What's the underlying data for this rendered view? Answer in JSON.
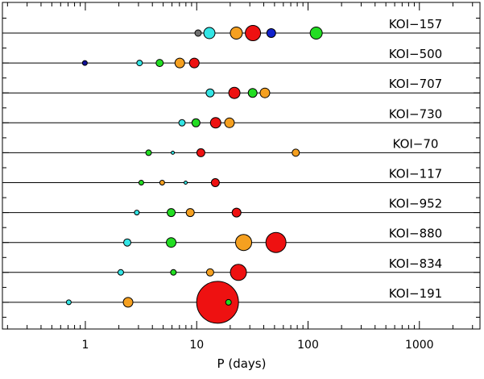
{
  "chart_data": {
    "type": "scatter",
    "title": "",
    "xlabel": "P (days)",
    "ylabel": "",
    "x_scale": "log",
    "xlim": [
      0.18,
      3500
    ],
    "x_ticks": [
      1,
      10,
      100,
      1000
    ],
    "x_tick_labels": [
      "1",
      "10",
      "100",
      "1000"
    ],
    "colors": {
      "cyan": "#33e5e5",
      "green": "#22dd22",
      "orange": "#f5a020",
      "red": "#ee1111",
      "blue": "#1122cc",
      "darkblue": "#101099",
      "gray": "#707070"
    },
    "systems": [
      {
        "name": "KOI−157",
        "planets": [
          {
            "period": 10.3,
            "size": 4,
            "color": "gray"
          },
          {
            "period": 13.0,
            "size": 7,
            "color": "cyan"
          },
          {
            "period": 22.7,
            "size": 7.5,
            "color": "orange"
          },
          {
            "period": 32.0,
            "size": 9.5,
            "color": "red"
          },
          {
            "period": 46.7,
            "size": 5.5,
            "color": "blue"
          },
          {
            "period": 118.4,
            "size": 7.5,
            "color": "green"
          }
        ]
      },
      {
        "name": "KOI−500",
        "planets": [
          {
            "period": 0.99,
            "size": 3,
            "color": "darkblue"
          },
          {
            "period": 3.07,
            "size": 3.5,
            "color": "cyan"
          },
          {
            "period": 4.65,
            "size": 4.5,
            "color": "green"
          },
          {
            "period": 7.05,
            "size": 6,
            "color": "orange"
          },
          {
            "period": 9.52,
            "size": 6,
            "color": "red"
          }
        ]
      },
      {
        "name": "KOI−707",
        "planets": [
          {
            "period": 13.2,
            "size": 5,
            "color": "cyan"
          },
          {
            "period": 21.8,
            "size": 7,
            "color": "red"
          },
          {
            "period": 31.8,
            "size": 5.5,
            "color": "green"
          },
          {
            "period": 41.0,
            "size": 6,
            "color": "orange"
          }
        ]
      },
      {
        "name": "KOI−730",
        "planets": [
          {
            "period": 7.38,
            "size": 4,
            "color": "cyan"
          },
          {
            "period": 9.85,
            "size": 5,
            "color": "green"
          },
          {
            "period": 14.8,
            "size": 6.5,
            "color": "red"
          },
          {
            "period": 19.7,
            "size": 6,
            "color": "orange"
          }
        ]
      },
      {
        "name": "KOI−70",
        "planets": [
          {
            "period": 3.7,
            "size": 3.5,
            "color": "green"
          },
          {
            "period": 6.1,
            "size": 2,
            "color": "cyan"
          },
          {
            "period": 10.9,
            "size": 5,
            "color": "red"
          },
          {
            "period": 77.6,
            "size": 4.5,
            "color": "orange"
          }
        ]
      },
      {
        "name": "KOI−117",
        "planets": [
          {
            "period": 3.18,
            "size": 3,
            "color": "green"
          },
          {
            "period": 4.9,
            "size": 3,
            "color": "orange"
          },
          {
            "period": 7.96,
            "size": 2,
            "color": "cyan"
          },
          {
            "period": 14.7,
            "size": 5,
            "color": "red"
          }
        ]
      },
      {
        "name": "KOI−952",
        "planets": [
          {
            "period": 2.9,
            "size": 3,
            "color": "cyan"
          },
          {
            "period": 5.9,
            "size": 5,
            "color": "green"
          },
          {
            "period": 8.75,
            "size": 5,
            "color": "orange"
          },
          {
            "period": 22.8,
            "size": 5.5,
            "color": "red"
          }
        ]
      },
      {
        "name": "KOI−880",
        "planets": [
          {
            "period": 2.38,
            "size": 4.5,
            "color": "cyan"
          },
          {
            "period": 5.9,
            "size": 6,
            "color": "green"
          },
          {
            "period": 26.4,
            "size": 10,
            "color": "orange"
          },
          {
            "period": 51.5,
            "size": 12.5,
            "color": "red"
          }
        ]
      },
      {
        "name": "KOI−834",
        "planets": [
          {
            "period": 2.08,
            "size": 3.5,
            "color": "cyan"
          },
          {
            "period": 6.18,
            "size": 3.5,
            "color": "green"
          },
          {
            "period": 13.2,
            "size": 4.5,
            "color": "orange"
          },
          {
            "period": 23.7,
            "size": 10,
            "color": "red"
          }
        ]
      },
      {
        "name": "KOI−191",
        "planets": [
          {
            "period": 0.71,
            "size": 3,
            "color": "cyan"
          },
          {
            "period": 2.42,
            "size": 6,
            "color": "orange"
          },
          {
            "period": 15.4,
            "size": 26,
            "color": "red"
          },
          {
            "period": 19.3,
            "size": 3.5,
            "color": "green"
          }
        ]
      }
    ]
  }
}
